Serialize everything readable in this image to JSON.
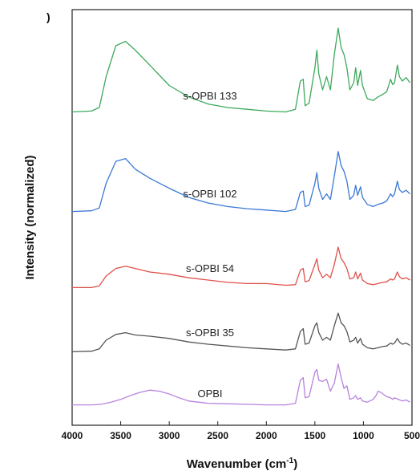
{
  "chart_data": {
    "type": "line",
    "panel_label": ")",
    "xlabel": "Wavenumber (cm",
    "xlabel_sup": "-1",
    "xlabel_suffix": ")",
    "ylabel": "Intensity (normalized)",
    "xlim": [
      4000,
      500
    ],
    "xlim_note": "reversed",
    "x_ticks": [
      4000,
      3500,
      3000,
      2500,
      2000,
      1500,
      1000,
      500
    ],
    "grid": false,
    "legend": "inline labels",
    "series": [
      {
        "name": "s-OPBI 133",
        "color": "#3daa5c",
        "offset": 4,
        "points": [
          [
            4000,
            0.05
          ],
          [
            3800,
            0.06
          ],
          [
            3720,
            0.1
          ],
          [
            3650,
            0.45
          ],
          [
            3550,
            0.8
          ],
          [
            3450,
            0.85
          ],
          [
            3350,
            0.75
          ],
          [
            3200,
            0.58
          ],
          [
            3000,
            0.35
          ],
          [
            2800,
            0.22
          ],
          [
            2600,
            0.14
          ],
          [
            2400,
            0.1
          ],
          [
            2200,
            0.08
          ],
          [
            2000,
            0.06
          ],
          [
            1800,
            0.05
          ],
          [
            1700,
            0.08
          ],
          [
            1650,
            0.4
          ],
          [
            1620,
            0.42
          ],
          [
            1600,
            0.12
          ],
          [
            1560,
            0.15
          ],
          [
            1500,
            0.55
          ],
          [
            1480,
            0.75
          ],
          [
            1460,
            0.48
          ],
          [
            1420,
            0.3
          ],
          [
            1380,
            0.45
          ],
          [
            1340,
            0.3
          ],
          [
            1300,
            0.7
          ],
          [
            1260,
            1.0
          ],
          [
            1230,
            0.78
          ],
          [
            1200,
            0.7
          ],
          [
            1170,
            0.55
          ],
          [
            1140,
            0.3
          ],
          [
            1100,
            0.38
          ],
          [
            1080,
            0.55
          ],
          [
            1060,
            0.35
          ],
          [
            1030,
            0.52
          ],
          [
            1010,
            0.35
          ],
          [
            960,
            0.2
          ],
          [
            900,
            0.18
          ],
          [
            850,
            0.22
          ],
          [
            800,
            0.25
          ],
          [
            760,
            0.28
          ],
          [
            720,
            0.42
          ],
          [
            700,
            0.36
          ],
          [
            680,
            0.38
          ],
          [
            650,
            0.58
          ],
          [
            630,
            0.45
          ],
          [
            600,
            0.4
          ],
          [
            560,
            0.44
          ],
          [
            520,
            0.38
          ]
        ]
      },
      {
        "name": "s-OPBI 102",
        "color": "#3a78d6",
        "offset": 3,
        "points": [
          [
            4000,
            0.05
          ],
          [
            3800,
            0.06
          ],
          [
            3720,
            0.1
          ],
          [
            3650,
            0.45
          ],
          [
            3550,
            0.76
          ],
          [
            3450,
            0.8
          ],
          [
            3350,
            0.65
          ],
          [
            3200,
            0.52
          ],
          [
            3000,
            0.38
          ],
          [
            2800,
            0.25
          ],
          [
            2600,
            0.17
          ],
          [
            2400,
            0.12
          ],
          [
            2200,
            0.09
          ],
          [
            2000,
            0.07
          ],
          [
            1800,
            0.05
          ],
          [
            1700,
            0.08
          ],
          [
            1650,
            0.32
          ],
          [
            1620,
            0.34
          ],
          [
            1600,
            0.12
          ],
          [
            1560,
            0.14
          ],
          [
            1500,
            0.45
          ],
          [
            1480,
            0.6
          ],
          [
            1460,
            0.38
          ],
          [
            1420,
            0.22
          ],
          [
            1380,
            0.3
          ],
          [
            1340,
            0.22
          ],
          [
            1300,
            0.55
          ],
          [
            1260,
            0.9
          ],
          [
            1230,
            0.7
          ],
          [
            1200,
            0.62
          ],
          [
            1170,
            0.48
          ],
          [
            1140,
            0.22
          ],
          [
            1100,
            0.28
          ],
          [
            1080,
            0.42
          ],
          [
            1060,
            0.28
          ],
          [
            1030,
            0.4
          ],
          [
            1010,
            0.25
          ],
          [
            960,
            0.15
          ],
          [
            900,
            0.12
          ],
          [
            850,
            0.15
          ],
          [
            800,
            0.17
          ],
          [
            760,
            0.2
          ],
          [
            720,
            0.3
          ],
          [
            700,
            0.26
          ],
          [
            680,
            0.3
          ],
          [
            650,
            0.48
          ],
          [
            630,
            0.36
          ],
          [
            600,
            0.32
          ],
          [
            560,
            0.35
          ],
          [
            520,
            0.3
          ]
        ]
      },
      {
        "name": "s-OPBI 54",
        "color": "#e0504a",
        "offset": 2,
        "points": [
          [
            4000,
            0.05
          ],
          [
            3800,
            0.05
          ],
          [
            3720,
            0.08
          ],
          [
            3650,
            0.25
          ],
          [
            3550,
            0.38
          ],
          [
            3450,
            0.42
          ],
          [
            3350,
            0.38
          ],
          [
            3200,
            0.32
          ],
          [
            3000,
            0.28
          ],
          [
            2800,
            0.22
          ],
          [
            2600,
            0.18
          ],
          [
            2400,
            0.14
          ],
          [
            2200,
            0.12
          ],
          [
            2000,
            0.12
          ],
          [
            1800,
            0.09
          ],
          [
            1700,
            0.1
          ],
          [
            1650,
            0.35
          ],
          [
            1620,
            0.38
          ],
          [
            1600,
            0.15
          ],
          [
            1560,
            0.17
          ],
          [
            1500,
            0.45
          ],
          [
            1480,
            0.55
          ],
          [
            1460,
            0.35
          ],
          [
            1420,
            0.22
          ],
          [
            1380,
            0.28
          ],
          [
            1340,
            0.22
          ],
          [
            1300,
            0.45
          ],
          [
            1260,
            0.75
          ],
          [
            1230,
            0.55
          ],
          [
            1200,
            0.48
          ],
          [
            1170,
            0.38
          ],
          [
            1140,
            0.2
          ],
          [
            1100,
            0.22
          ],
          [
            1080,
            0.32
          ],
          [
            1060,
            0.2
          ],
          [
            1030,
            0.3
          ],
          [
            1010,
            0.18
          ],
          [
            960,
            0.12
          ],
          [
            900,
            0.1
          ],
          [
            850,
            0.12
          ],
          [
            800,
            0.14
          ],
          [
            760,
            0.15
          ],
          [
            720,
            0.2
          ],
          [
            700,
            0.18
          ],
          [
            680,
            0.2
          ],
          [
            650,
            0.32
          ],
          [
            630,
            0.24
          ],
          [
            600,
            0.2
          ],
          [
            560,
            0.22
          ],
          [
            520,
            0.18
          ]
        ]
      },
      {
        "name": "s-OPBI 35",
        "color": "#555555",
        "offset": 1,
        "points": [
          [
            4000,
            0.05
          ],
          [
            3800,
            0.06
          ],
          [
            3720,
            0.1
          ],
          [
            3650,
            0.25
          ],
          [
            3550,
            0.35
          ],
          [
            3450,
            0.38
          ],
          [
            3350,
            0.34
          ],
          [
            3200,
            0.32
          ],
          [
            3000,
            0.28
          ],
          [
            2800,
            0.22
          ],
          [
            2600,
            0.18
          ],
          [
            2400,
            0.15
          ],
          [
            2200,
            0.12
          ],
          [
            2000,
            0.1
          ],
          [
            1800,
            0.08
          ],
          [
            1700,
            0.1
          ],
          [
            1650,
            0.4
          ],
          [
            1620,
            0.45
          ],
          [
            1600,
            0.18
          ],
          [
            1560,
            0.2
          ],
          [
            1500,
            0.5
          ],
          [
            1480,
            0.55
          ],
          [
            1460,
            0.38
          ],
          [
            1420,
            0.25
          ],
          [
            1380,
            0.3
          ],
          [
            1340,
            0.25
          ],
          [
            1300,
            0.5
          ],
          [
            1260,
            0.72
          ],
          [
            1230,
            0.55
          ],
          [
            1200,
            0.5
          ],
          [
            1170,
            0.4
          ],
          [
            1140,
            0.22
          ],
          [
            1100,
            0.25
          ],
          [
            1080,
            0.3
          ],
          [
            1060,
            0.2
          ],
          [
            1030,
            0.28
          ],
          [
            1010,
            0.18
          ],
          [
            960,
            0.12
          ],
          [
            900,
            0.1
          ],
          [
            850,
            0.12
          ],
          [
            800,
            0.14
          ],
          [
            760,
            0.15
          ],
          [
            720,
            0.2
          ],
          [
            700,
            0.18
          ],
          [
            680,
            0.2
          ],
          [
            650,
            0.28
          ],
          [
            630,
            0.22
          ],
          [
            600,
            0.18
          ],
          [
            560,
            0.2
          ],
          [
            520,
            0.16
          ]
        ]
      },
      {
        "name": "OPBI",
        "color": "#b982de",
        "offset": 0,
        "points": [
          [
            4000,
            0.05
          ],
          [
            3800,
            0.05
          ],
          [
            3700,
            0.06
          ],
          [
            3600,
            0.1
          ],
          [
            3500,
            0.15
          ],
          [
            3400,
            0.22
          ],
          [
            3300,
            0.28
          ],
          [
            3200,
            0.32
          ],
          [
            3100,
            0.3
          ],
          [
            3000,
            0.25
          ],
          [
            2900,
            0.18
          ],
          [
            2800,
            0.12
          ],
          [
            2700,
            0.1
          ],
          [
            2600,
            0.08
          ],
          [
            2400,
            0.07
          ],
          [
            2200,
            0.06
          ],
          [
            2000,
            0.05
          ],
          [
            1800,
            0.05
          ],
          [
            1700,
            0.08
          ],
          [
            1650,
            0.5
          ],
          [
            1620,
            0.55
          ],
          [
            1600,
            0.18
          ],
          [
            1560,
            0.2
          ],
          [
            1500,
            0.65
          ],
          [
            1480,
            0.7
          ],
          [
            1460,
            0.5
          ],
          [
            1420,
            0.48
          ],
          [
            1380,
            0.52
          ],
          [
            1340,
            0.3
          ],
          [
            1300,
            0.45
          ],
          [
            1260,
            0.8
          ],
          [
            1230,
            0.55
          ],
          [
            1200,
            0.35
          ],
          [
            1170,
            0.4
          ],
          [
            1140,
            0.15
          ],
          [
            1100,
            0.18
          ],
          [
            1080,
            0.22
          ],
          [
            1060,
            0.15
          ],
          [
            1030,
            0.18
          ],
          [
            1010,
            0.12
          ],
          [
            960,
            0.1
          ],
          [
            900,
            0.15
          ],
          [
            870,
            0.22
          ],
          [
            850,
            0.3
          ],
          [
            820,
            0.28
          ],
          [
            800,
            0.25
          ],
          [
            760,
            0.2
          ],
          [
            720,
            0.18
          ],
          [
            700,
            0.15
          ],
          [
            680,
            0.18
          ],
          [
            650,
            0.16
          ],
          [
            600,
            0.12
          ],
          [
            560,
            0.14
          ],
          [
            520,
            0.1
          ]
        ]
      }
    ]
  }
}
